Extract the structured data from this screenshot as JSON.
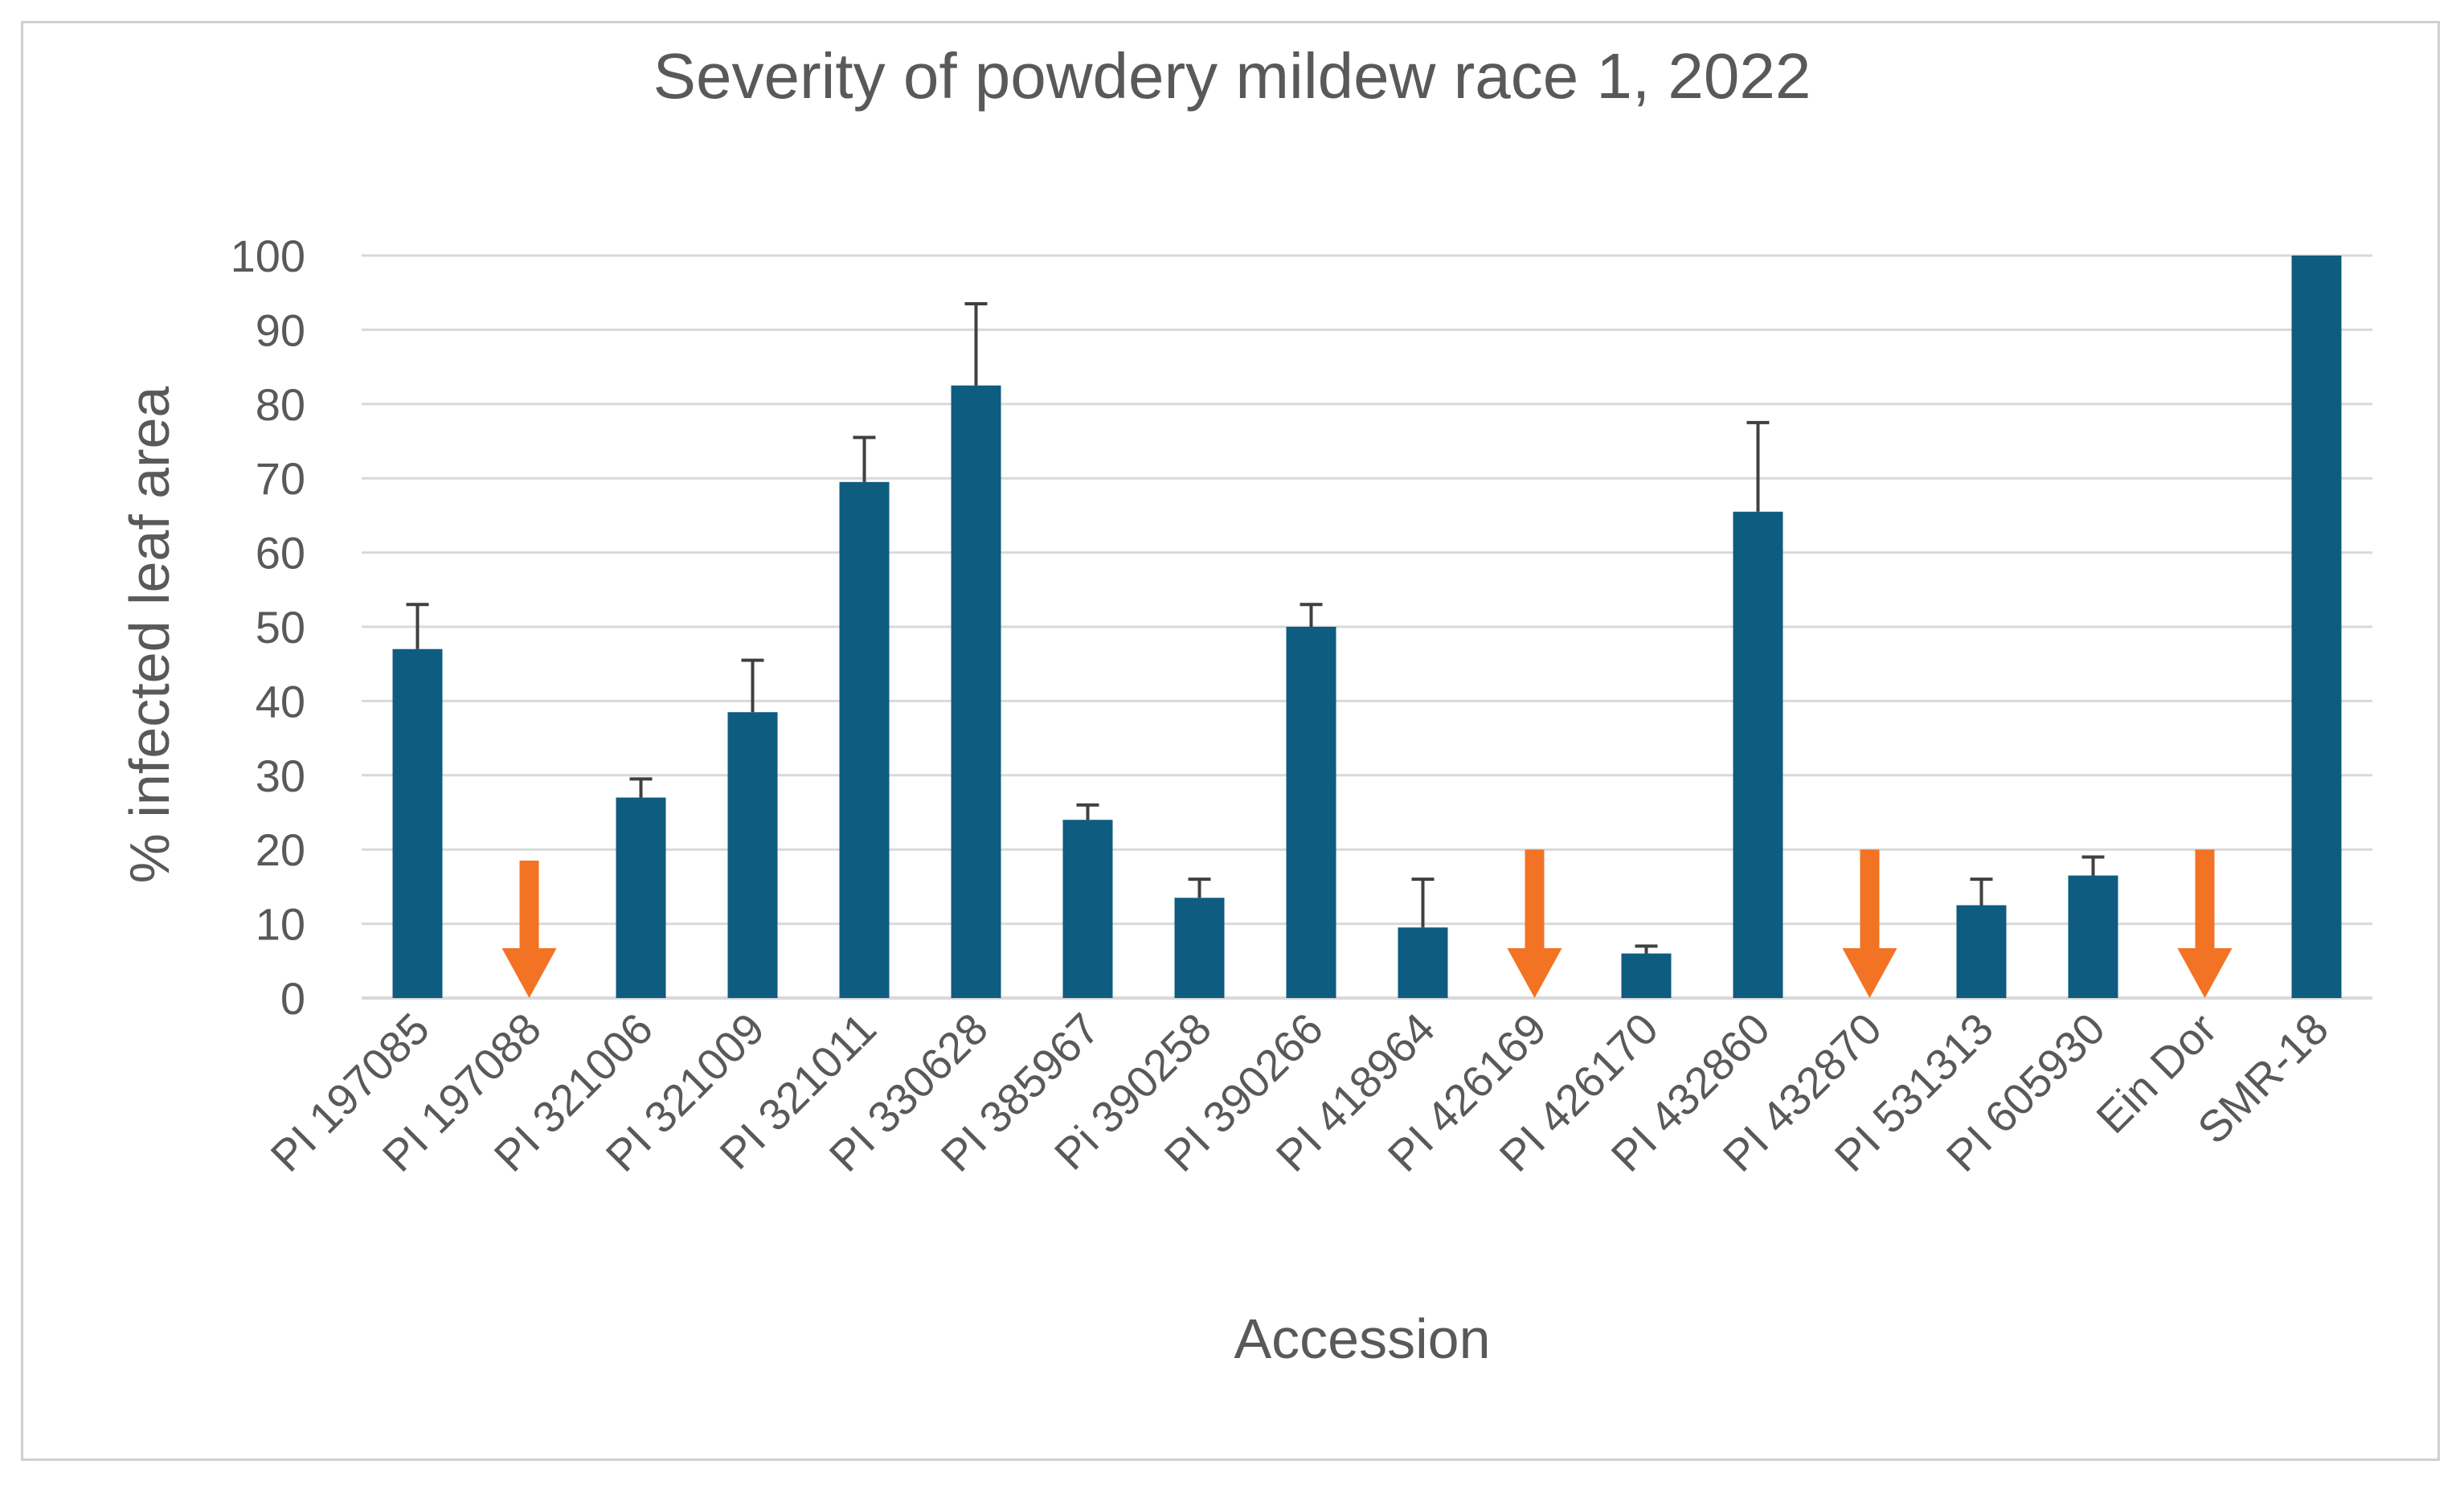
{
  "chart_data": {
    "type": "bar",
    "title": "Severity of powdery mildew race 1, 2022",
    "xlabel": "Accession",
    "ylabel": "% infected leaf area",
    "ylim": [
      0,
      100
    ],
    "yticks": [
      0,
      10,
      20,
      30,
      40,
      50,
      60,
      70,
      80,
      90,
      100
    ],
    "grid": true,
    "legend": "none",
    "categories": [
      "PI 197085",
      "PI 197088",
      "PI 321006",
      "PI 321009",
      "PI 321011",
      "PI 330628",
      "PI 385967",
      "Pi 390258",
      "PI 390266",
      "PI 418964",
      "PI 426169",
      "PI 426170",
      "PI 432860",
      "PI 432870",
      "PI 531313",
      "PI 605930",
      "Ein Dor",
      "SMR-18"
    ],
    "values": [
      47,
      null,
      27,
      38.5,
      69.5,
      82.5,
      24,
      13.5,
      50,
      9.5,
      null,
      6,
      65.5,
      null,
      12.5,
      16.5,
      null,
      100
    ],
    "error_upper": [
      53,
      null,
      29.5,
      45.5,
      75.5,
      93.5,
      26,
      16,
      53,
      16,
      null,
      7,
      77.5,
      null,
      16,
      19,
      null,
      null
    ],
    "arrows": [
      {
        "category": "PI 197088",
        "from": 18.5,
        "to": 0
      },
      {
        "category": "PI 426169",
        "from": 20,
        "to": 0
      },
      {
        "category": "PI 432870",
        "from": 20,
        "to": 0
      },
      {
        "category": "Ein Dor",
        "from": 20,
        "to": 0
      }
    ],
    "colors": {
      "bar": "#0e5c80",
      "error_bar": "#404040",
      "arrow": "#f37325",
      "grid": "#d9d9d9",
      "text": "#595959"
    }
  }
}
